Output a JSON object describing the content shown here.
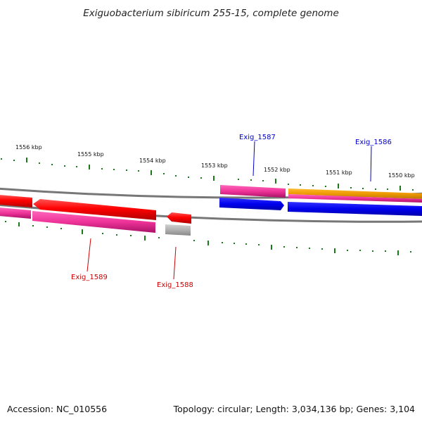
{
  "title": "Exiguobacterium sibiricum 255-15, complete genome",
  "footer": {
    "accession": "Accession: NC_010556",
    "summary": "Topology: circular; Length: 3,034,136 bp; Genes: 3,104"
  },
  "scale_labels": [
    "1556 kbp",
    "1555 kbp",
    "1554 kbp",
    "1553 kbp",
    "1552 kbp",
    "1551 kbp",
    "1550 kbp"
  ],
  "gene_labels": [
    {
      "name": "Exig_1587",
      "color": "#0000cc"
    },
    {
      "name": "Exig_1586",
      "color": "#0000cc"
    },
    {
      "name": "Exig_1589",
      "color": "#cc0000"
    },
    {
      "name": "Exig_1588",
      "color": "#cc0000"
    }
  ],
  "colors": {
    "backbone": "#808080",
    "tick": "#1a7a1a",
    "forward_cds": "#0000ee",
    "reverse_cds": "#ee0000",
    "gene": "#ee3399",
    "misc_feature": "#ee9900",
    "pseudo": "#b0b0b0"
  }
}
